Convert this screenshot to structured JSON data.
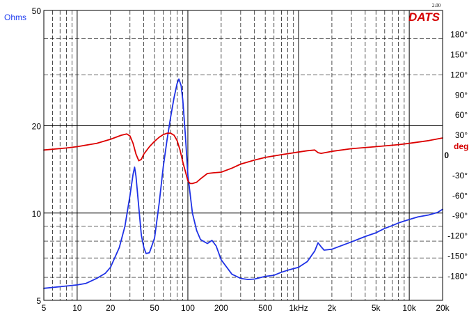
{
  "chart_data": {
    "type": "line",
    "title": "",
    "brand": "DATS",
    "version": "2.00",
    "x_axis": {
      "scale": "log",
      "range": [
        5,
        20000
      ],
      "tick_labels": [
        {
          "value": 5,
          "label": "5"
        },
        {
          "value": 10,
          "label": "10"
        },
        {
          "value": 20,
          "label": "20"
        },
        {
          "value": 50,
          "label": "50"
        },
        {
          "value": 100,
          "label": "100"
        },
        {
          "value": 200,
          "label": "200"
        },
        {
          "value": 500,
          "label": "500"
        },
        {
          "value": 1000,
          "label": "1kHz"
        },
        {
          "value": 2000,
          "label": "2k"
        },
        {
          "value": 5000,
          "label": "5k"
        },
        {
          "value": 10000,
          "label": "10k"
        },
        {
          "value": 20000,
          "label": "20k"
        }
      ]
    },
    "y_left": {
      "scale": "log",
      "unit": "Ohms",
      "range": [
        5,
        50
      ],
      "tick_labels": [
        {
          "value": 5,
          "label": "5"
        },
        {
          "value": 10,
          "label": "10"
        },
        {
          "value": 20,
          "label": "20"
        },
        {
          "value": 50,
          "label": "50"
        }
      ]
    },
    "y_right": {
      "scale": "linear",
      "unit": "deg",
      "range": [
        -216,
        216
      ],
      "tick_labels": [
        {
          "value": 180,
          "label": "180°"
        },
        {
          "value": 150,
          "label": "150°"
        },
        {
          "value": 120,
          "label": "120°"
        },
        {
          "value": 90,
          "label": "90°"
        },
        {
          "value": 60,
          "label": "60°"
        },
        {
          "value": 30,
          "label": "30°"
        },
        {
          "value": 0,
          "label": "0"
        },
        {
          "value": -30,
          "label": "-30°"
        },
        {
          "value": -60,
          "label": "-60°"
        },
        {
          "value": -90,
          "label": "-90°"
        },
        {
          "value": -120,
          "label": "-120°"
        },
        {
          "value": -150,
          "label": "-150°"
        },
        {
          "value": -180,
          "label": "-180°"
        }
      ]
    },
    "grid": true,
    "series": [
      {
        "key": "impedance",
        "axis": "left",
        "color": "#1f32e6",
        "points": [
          [
            5,
            5.5
          ],
          [
            8,
            5.6
          ],
          [
            10,
            5.65
          ],
          [
            12,
            5.72
          ],
          [
            15,
            5.95
          ],
          [
            18,
            6.2
          ],
          [
            20,
            6.5
          ],
          [
            24,
            7.6
          ],
          [
            27,
            9.0
          ],
          [
            30,
            11.5
          ],
          [
            32,
            13.6
          ],
          [
            33,
            14.4
          ],
          [
            34,
            13.4
          ],
          [
            36,
            10.5
          ],
          [
            38,
            8.4
          ],
          [
            40,
            7.6
          ],
          [
            42,
            7.25
          ],
          [
            45,
            7.3
          ],
          [
            50,
            8.2
          ],
          [
            55,
            10.8
          ],
          [
            60,
            14.5
          ],
          [
            65,
            18.0
          ],
          [
            70,
            21.5
          ],
          [
            75,
            25.0
          ],
          [
            80,
            28.0
          ],
          [
            83,
            29.0
          ],
          [
            87,
            27.5
          ],
          [
            90,
            24.5
          ],
          [
            95,
            18.5
          ],
          [
            100,
            13.5
          ],
          [
            110,
            10.0
          ],
          [
            120,
            8.7
          ],
          [
            130,
            8.1
          ],
          [
            150,
            7.85
          ],
          [
            165,
            8.05
          ],
          [
            180,
            7.7
          ],
          [
            200,
            6.9
          ],
          [
            250,
            6.15
          ],
          [
            300,
            5.95
          ],
          [
            350,
            5.9
          ],
          [
            400,
            5.92
          ],
          [
            500,
            6.05
          ],
          [
            600,
            6.1
          ],
          [
            700,
            6.25
          ],
          [
            800,
            6.35
          ],
          [
            1000,
            6.5
          ],
          [
            1200,
            6.8
          ],
          [
            1400,
            7.4
          ],
          [
            1500,
            7.9
          ],
          [
            1600,
            7.65
          ],
          [
            1700,
            7.45
          ],
          [
            2000,
            7.5
          ],
          [
            3000,
            7.95
          ],
          [
            4000,
            8.3
          ],
          [
            5000,
            8.55
          ],
          [
            6000,
            8.85
          ],
          [
            7000,
            9.05
          ],
          [
            8000,
            9.25
          ],
          [
            10000,
            9.5
          ],
          [
            12000,
            9.7
          ],
          [
            15000,
            9.85
          ],
          [
            18000,
            10.05
          ],
          [
            20000,
            10.3
          ]
        ]
      },
      {
        "key": "phase",
        "axis": "right",
        "color": "#dc0000",
        "points": [
          [
            5,
            8
          ],
          [
            8,
            11
          ],
          [
            10,
            13
          ],
          [
            15,
            18
          ],
          [
            20,
            24
          ],
          [
            25,
            30
          ],
          [
            28,
            32
          ],
          [
            30,
            29
          ],
          [
            32,
            18
          ],
          [
            34,
            2
          ],
          [
            36,
            -8
          ],
          [
            38,
            -6
          ],
          [
            40,
            2
          ],
          [
            45,
            13
          ],
          [
            50,
            21
          ],
          [
            55,
            27
          ],
          [
            60,
            31
          ],
          [
            65,
            33
          ],
          [
            70,
            33
          ],
          [
            75,
            30
          ],
          [
            80,
            22
          ],
          [
            85,
            8
          ],
          [
            90,
            -10
          ],
          [
            95,
            -24
          ],
          [
            100,
            -38
          ],
          [
            105,
            -42
          ],
          [
            110,
            -42
          ],
          [
            120,
            -40
          ],
          [
            130,
            -35
          ],
          [
            150,
            -27
          ],
          [
            170,
            -26
          ],
          [
            200,
            -25
          ],
          [
            250,
            -19
          ],
          [
            300,
            -13
          ],
          [
            400,
            -7
          ],
          [
            500,
            -3
          ],
          [
            700,
            1
          ],
          [
            1000,
            5
          ],
          [
            1200,
            7
          ],
          [
            1400,
            8
          ],
          [
            1500,
            4
          ],
          [
            1600,
            3
          ],
          [
            2000,
            6
          ],
          [
            3000,
            10
          ],
          [
            5000,
            13
          ],
          [
            8000,
            16
          ],
          [
            10000,
            18
          ],
          [
            15000,
            22
          ],
          [
            20000,
            26
          ]
        ]
      }
    ]
  }
}
